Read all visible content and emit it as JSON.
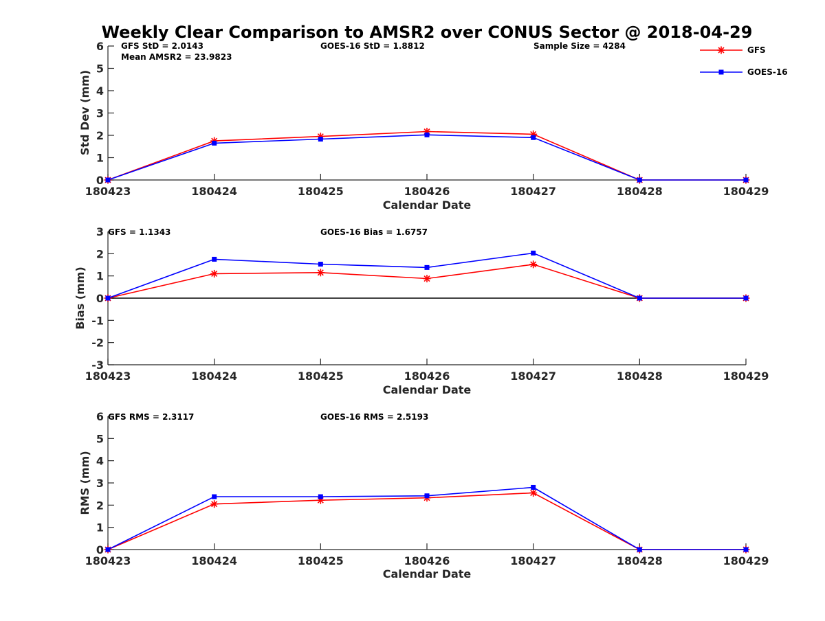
{
  "figure": {
    "title": "Weekly Clear Comparison to AMSR2 over CONUS Sector @ 2018-04-29"
  },
  "legend": {
    "placement": "top-right",
    "entries": [
      {
        "name": "GFS",
        "color": "#ff0000",
        "marker": "asterisk"
      },
      {
        "name": "GOES-16",
        "color": "#0000ff",
        "marker": "square"
      }
    ]
  },
  "chart_data": [
    {
      "type": "line",
      "title": "",
      "xlabel": "Calendar Date",
      "ylabel": "Std Dev (mm)",
      "categories": [
        "180423",
        "180424",
        "180425",
        "180426",
        "180427",
        "180428",
        "180429"
      ],
      "ylim": [
        0,
        6
      ],
      "yticks": [
        "0",
        "1",
        "2",
        "3",
        "4",
        "5",
        "6"
      ],
      "zero_line": false,
      "grid": false,
      "series": [
        {
          "name": "GFS",
          "color": "#ff0000",
          "marker": "asterisk",
          "values": [
            0,
            1.75,
            1.95,
            2.17,
            2.05,
            0,
            0
          ]
        },
        {
          "name": "GOES-16",
          "color": "#0000ff",
          "marker": "square",
          "values": [
            0,
            1.65,
            1.83,
            2.02,
            1.9,
            0,
            0
          ]
        }
      ],
      "annotations": [
        "GFS StD = 2.0143",
        "Mean AMSR2 = 23.9823",
        "GOES-16 StD = 1.8812",
        "Sample Size = 4284"
      ]
    },
    {
      "type": "line",
      "title": "",
      "xlabel": "Calendar Date",
      "ylabel": "Bias (mm)",
      "categories": [
        "180423",
        "180424",
        "180425",
        "180426",
        "180427",
        "180428",
        "180429"
      ],
      "ylim": [
        -3,
        3
      ],
      "yticks": [
        "-3",
        "-2",
        "-1",
        "0",
        "1",
        "2",
        "3"
      ],
      "zero_line": true,
      "grid": false,
      "series": [
        {
          "name": "GFS",
          "color": "#ff0000",
          "marker": "asterisk",
          "values": [
            0,
            1.1,
            1.15,
            0.88,
            1.52,
            0,
            0
          ]
        },
        {
          "name": "GOES-16",
          "color": "#0000ff",
          "marker": "square",
          "values": [
            0,
            1.75,
            1.53,
            1.38,
            2.03,
            0,
            0
          ]
        }
      ],
      "annotations": [
        "GFS = 1.1343",
        "GOES-16 Bias  = 1.6757"
      ]
    },
    {
      "type": "line",
      "title": "",
      "xlabel": "Calendar Date",
      "ylabel": "RMS (mm)",
      "categories": [
        "180423",
        "180424",
        "180425",
        "180426",
        "180427",
        "180428",
        "180429"
      ],
      "ylim": [
        0,
        6
      ],
      "yticks": [
        "0",
        "1",
        "2",
        "3",
        "4",
        "5",
        "6"
      ],
      "zero_line": false,
      "grid": false,
      "series": [
        {
          "name": "GFS",
          "color": "#ff0000",
          "marker": "asterisk",
          "values": [
            0,
            2.05,
            2.22,
            2.33,
            2.55,
            0,
            0
          ]
        },
        {
          "name": "GOES-16",
          "color": "#0000ff",
          "marker": "square",
          "values": [
            0,
            2.38,
            2.38,
            2.42,
            2.8,
            0,
            0
          ]
        }
      ],
      "annotations": [
        "GFS RMS = 2.3117",
        "GOES-16 RMS = 2.5193"
      ]
    }
  ]
}
